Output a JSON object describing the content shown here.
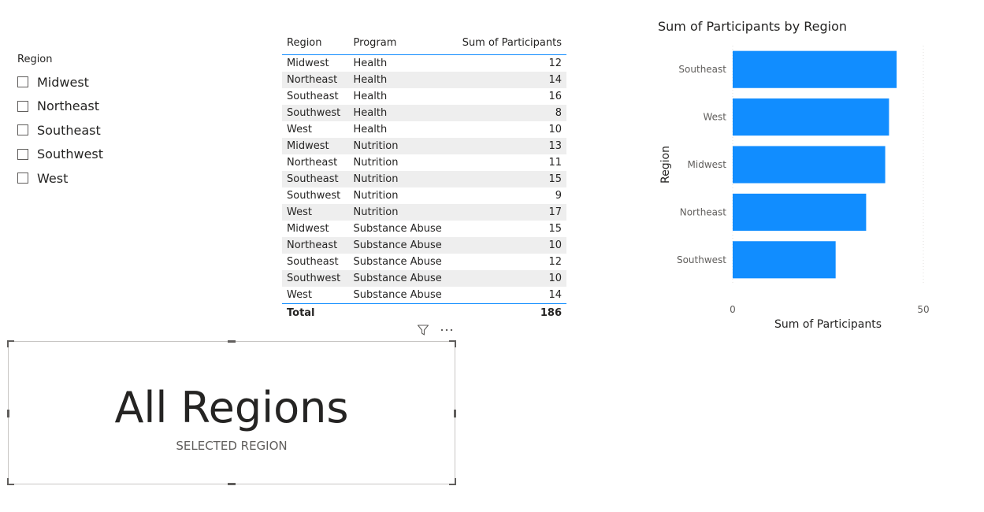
{
  "slicer": {
    "title": "Region",
    "items": [
      {
        "label": "Midwest",
        "checked": false
      },
      {
        "label": "Northeast",
        "checked": false
      },
      {
        "label": "Southeast",
        "checked": false
      },
      {
        "label": "Southwest",
        "checked": false
      },
      {
        "label": "West",
        "checked": false
      }
    ]
  },
  "table": {
    "headers": [
      "Region",
      "Program",
      "Sum of Participants"
    ],
    "rows": [
      [
        "Midwest",
        "Health",
        "12"
      ],
      [
        "Northeast",
        "Health",
        "14"
      ],
      [
        "Southeast",
        "Health",
        "16"
      ],
      [
        "Southwest",
        "Health",
        "8"
      ],
      [
        "West",
        "Health",
        "10"
      ],
      [
        "Midwest",
        "Nutrition",
        "13"
      ],
      [
        "Northeast",
        "Nutrition",
        "11"
      ],
      [
        "Southeast",
        "Nutrition",
        "15"
      ],
      [
        "Southwest",
        "Nutrition",
        "9"
      ],
      [
        "West",
        "Nutrition",
        "17"
      ],
      [
        "Midwest",
        "Substance Abuse",
        "15"
      ],
      [
        "Northeast",
        "Substance Abuse",
        "10"
      ],
      [
        "Southeast",
        "Substance Abuse",
        "12"
      ],
      [
        "Southwest",
        "Substance Abuse",
        "10"
      ],
      [
        "West",
        "Substance Abuse",
        "14"
      ]
    ],
    "total_label": "Total",
    "total_value": "186"
  },
  "card": {
    "value": "All Regions",
    "label": "SELECTED REGION"
  },
  "card_header": {
    "filter_icon": "filter-icon",
    "more_icon": "more-options-icon"
  },
  "chart_data": {
    "type": "bar",
    "orientation": "horizontal",
    "title": "Sum of Participants by Region",
    "xlabel": "Sum of Participants",
    "ylabel": "Region",
    "categories": [
      "Southeast",
      "West",
      "Midwest",
      "Northeast",
      "Southwest"
    ],
    "values": [
      43,
      41,
      40,
      35,
      27
    ],
    "xlim": [
      0,
      50
    ],
    "xticks": [
      "0",
      "50"
    ],
    "color": "#118DFF"
  },
  "colors": {
    "accent": "#118DFF",
    "text": "#252423",
    "muted": "#605E5C"
  }
}
